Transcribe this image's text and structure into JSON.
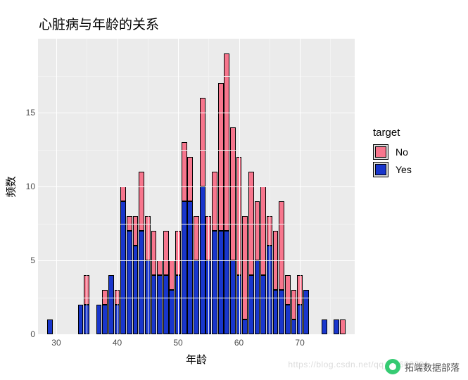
{
  "chart": {
    "type": "stacked-histogram",
    "title": "心脏病与年龄的关系",
    "xlabel": "年龄",
    "ylabel": "频数",
    "background_color": "#ffffff",
    "panel_color": "#ebebeb",
    "grid_color_major": "#ffffff",
    "grid_color_minor": "#f3f3f3",
    "bar_border_color": "#000000",
    "title_fontsize": 19,
    "label_fontsize": 15,
    "tick_fontsize": 12,
    "tick_color": "#4d4d4d",
    "xlim": [
      27,
      79
    ],
    "ylim": [
      0,
      20
    ],
    "y_ticks": [
      0,
      5,
      10,
      15
    ],
    "y_minor": [
      2.5,
      7.5,
      12.5,
      17.5
    ],
    "x_ticks": [
      30,
      40,
      50,
      60,
      70
    ],
    "x_minor": [
      35,
      45,
      55,
      65,
      75
    ],
    "bar_width": 0.9,
    "legend": {
      "title": "target",
      "position": "right",
      "items": [
        "No",
        "Yes"
      ],
      "colors": {
        "No": "#f7768d",
        "Yes": "#1936cc"
      }
    },
    "bins": [
      {
        "age": 29,
        "yes": 1,
        "no": 0
      },
      {
        "age": 34,
        "yes": 2,
        "no": 0
      },
      {
        "age": 35,
        "yes": 2,
        "no": 2
      },
      {
        "age": 37,
        "yes": 2,
        "no": 0
      },
      {
        "age": 38,
        "yes": 2,
        "no": 1
      },
      {
        "age": 39,
        "yes": 4,
        "no": 0
      },
      {
        "age": 40,
        "yes": 2,
        "no": 1
      },
      {
        "age": 41,
        "yes": 9,
        "no": 1
      },
      {
        "age": 42,
        "yes": 7,
        "no": 1
      },
      {
        "age": 43,
        "yes": 6,
        "no": 2
      },
      {
        "age": 44,
        "yes": 7,
        "no": 4
      },
      {
        "age": 45,
        "yes": 5,
        "no": 3
      },
      {
        "age": 46,
        "yes": 4,
        "no": 3
      },
      {
        "age": 47,
        "yes": 4,
        "no": 1
      },
      {
        "age": 48,
        "yes": 4,
        "no": 3
      },
      {
        "age": 49,
        "yes": 3,
        "no": 2
      },
      {
        "age": 50,
        "yes": 4,
        "no": 3
      },
      {
        "age": 51,
        "yes": 9,
        "no": 4
      },
      {
        "age": 52,
        "yes": 9,
        "no": 3
      },
      {
        "age": 53,
        "yes": 5,
        "no": 3
      },
      {
        "age": 54,
        "yes": 10,
        "no": 6
      },
      {
        "age": 55,
        "yes": 5,
        "no": 3
      },
      {
        "age": 56,
        "yes": 7,
        "no": 4
      },
      {
        "age": 57,
        "yes": 7,
        "no": 10
      },
      {
        "age": 58,
        "yes": 7,
        "no": 12
      },
      {
        "age": 59,
        "yes": 5,
        "no": 9
      },
      {
        "age": 60,
        "yes": 4,
        "no": 8
      },
      {
        "age": 61,
        "yes": 1,
        "no": 7
      },
      {
        "age": 62,
        "yes": 4,
        "no": 7
      },
      {
        "age": 63,
        "yes": 5,
        "no": 4
      },
      {
        "age": 64,
        "yes": 4,
        "no": 6
      },
      {
        "age": 65,
        "yes": 6,
        "no": 2
      },
      {
        "age": 66,
        "yes": 3,
        "no": 4
      },
      {
        "age": 67,
        "yes": 3,
        "no": 6
      },
      {
        "age": 68,
        "yes": 2,
        "no": 2
      },
      {
        "age": 69,
        "yes": 1,
        "no": 2
      },
      {
        "age": 70,
        "yes": 2,
        "no": 2
      },
      {
        "age": 71,
        "yes": 3,
        "no": 0
      },
      {
        "age": 74,
        "yes": 1,
        "no": 0
      },
      {
        "age": 76,
        "yes": 1,
        "no": 0
      },
      {
        "age": 77,
        "yes": 0,
        "no": 1
      }
    ]
  },
  "watermark": {
    "faint_text": "https://blog.csdn.net/qq_19600291",
    "label": "拓端数据部落"
  }
}
